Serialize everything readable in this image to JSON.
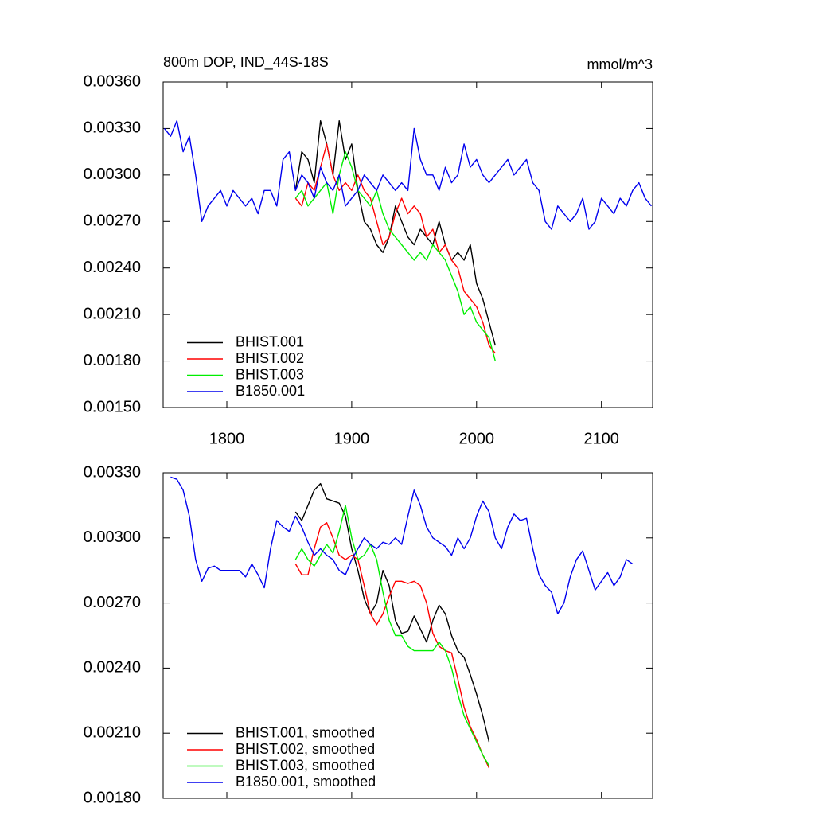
{
  "chart_data": [
    {
      "type": "line",
      "title": "800m DOP, IND_44S-18S",
      "units": "mmol/m^3",
      "xlim": [
        1749,
        2141
      ],
      "xticks": [
        1800,
        1900,
        2000,
        2100
      ],
      "xticklabels": true,
      "ylim": [
        0.0015,
        0.0036
      ],
      "yticks": [
        {
          "value": 0.0015,
          "label": "0.00150"
        },
        {
          "value": 0.0018,
          "label": "0.00180"
        },
        {
          "value": 0.0021,
          "label": "0.00210"
        },
        {
          "value": 0.0024,
          "label": "0.00240"
        },
        {
          "value": 0.0027,
          "label": "0.00270"
        },
        {
          "value": 0.003,
          "label": "0.00300"
        },
        {
          "value": 0.0033,
          "label": "0.00330"
        },
        {
          "value": 0.0036,
          "label": "0.00360"
        }
      ],
      "legend": "lower left",
      "series": [
        {
          "name": "BHIST.001",
          "color": "#000000",
          "x": [
            1855,
            1860,
            1865,
            1870,
            1875,
            1880,
            1885,
            1890,
            1895,
            1900,
            1905,
            1910,
            1915,
            1920,
            1925,
            1930,
            1935,
            1940,
            1945,
            1950,
            1955,
            1960,
            1965,
            1970,
            1975,
            1980,
            1985,
            1990,
            1995,
            2000,
            2005,
            2010,
            2015
          ],
          "values": [
            0.0029,
            0.00315,
            0.0031,
            0.00295,
            0.00335,
            0.0032,
            0.003,
            0.00335,
            0.0031,
            0.0032,
            0.0029,
            0.0027,
            0.00265,
            0.00255,
            0.0025,
            0.0026,
            0.0028,
            0.0027,
            0.0026,
            0.00255,
            0.00265,
            0.0026,
            0.00255,
            0.0027,
            0.00255,
            0.00245,
            0.0025,
            0.00245,
            0.00255,
            0.0023,
            0.0022,
            0.00205,
            0.0019
          ]
        },
        {
          "name": "BHIST.002",
          "color": "#ff0000",
          "x": [
            1855,
            1860,
            1865,
            1870,
            1875,
            1880,
            1885,
            1890,
            1895,
            1900,
            1905,
            1910,
            1915,
            1920,
            1925,
            1930,
            1935,
            1940,
            1945,
            1950,
            1955,
            1960,
            1965,
            1970,
            1975,
            1980,
            1985,
            1990,
            1995,
            2000,
            2005,
            2010,
            2015
          ],
          "values": [
            0.00285,
            0.0028,
            0.00295,
            0.0029,
            0.00305,
            0.0032,
            0.003,
            0.0029,
            0.00295,
            0.0029,
            0.003,
            0.0029,
            0.00285,
            0.0027,
            0.00255,
            0.0026,
            0.00275,
            0.00285,
            0.00275,
            0.0028,
            0.00275,
            0.0026,
            0.00265,
            0.0025,
            0.00255,
            0.00245,
            0.0024,
            0.00225,
            0.0022,
            0.00215,
            0.00205,
            0.0019,
            0.00185
          ]
        },
        {
          "name": "BHIST.003",
          "color": "#00ee00",
          "x": [
            1855,
            1860,
            1865,
            1870,
            1875,
            1880,
            1885,
            1890,
            1895,
            1900,
            1905,
            1910,
            1915,
            1920,
            1925,
            1930,
            1935,
            1940,
            1945,
            1950,
            1955,
            1960,
            1965,
            1970,
            1975,
            1980,
            1985,
            1990,
            1995,
            2000,
            2005,
            2010,
            2015
          ],
          "values": [
            0.00285,
            0.0029,
            0.0028,
            0.00285,
            0.0029,
            0.00295,
            0.00275,
            0.003,
            0.00315,
            0.00305,
            0.0029,
            0.00285,
            0.0028,
            0.0029,
            0.00275,
            0.00265,
            0.0026,
            0.00255,
            0.0025,
            0.00245,
            0.0025,
            0.00245,
            0.00255,
            0.0025,
            0.00245,
            0.00235,
            0.00225,
            0.0021,
            0.00215,
            0.00205,
            0.002,
            0.00195,
            0.0018
          ]
        },
        {
          "name": "B1850.001",
          "color": "#0000ee",
          "x": [
            1750,
            1755,
            1760,
            1765,
            1770,
            1775,
            1780,
            1785,
            1790,
            1795,
            1800,
            1805,
            1810,
            1815,
            1820,
            1825,
            1830,
            1835,
            1840,
            1845,
            1850,
            1855,
            1860,
            1865,
            1870,
            1875,
            1880,
            1885,
            1890,
            1895,
            1900,
            1905,
            1910,
            1915,
            1920,
            1925,
            1930,
            1935,
            1940,
            1945,
            1950,
            1955,
            1960,
            1965,
            1970,
            1975,
            1980,
            1985,
            1990,
            1995,
            2000,
            2005,
            2010,
            2015,
            2020,
            2025,
            2030,
            2035,
            2040,
            2045,
            2050,
            2055,
            2060,
            2065,
            2070,
            2075,
            2080,
            2085,
            2090,
            2095,
            2100,
            2105,
            2110,
            2115,
            2120,
            2125,
            2130,
            2135,
            2140
          ],
          "values": [
            0.0033,
            0.00325,
            0.00335,
            0.00315,
            0.00325,
            0.003,
            0.0027,
            0.0028,
            0.00285,
            0.0029,
            0.0028,
            0.0029,
            0.00285,
            0.0028,
            0.00285,
            0.00275,
            0.0029,
            0.0029,
            0.0028,
            0.0031,
            0.00315,
            0.0029,
            0.003,
            0.00295,
            0.00285,
            0.00305,
            0.00295,
            0.0029,
            0.003,
            0.0028,
            0.00285,
            0.0029,
            0.003,
            0.00295,
            0.0029,
            0.003,
            0.00295,
            0.0029,
            0.00295,
            0.0029,
            0.0033,
            0.0031,
            0.003,
            0.003,
            0.0029,
            0.00305,
            0.00295,
            0.003,
            0.0032,
            0.00305,
            0.0031,
            0.003,
            0.00295,
            0.003,
            0.00305,
            0.0031,
            0.003,
            0.00305,
            0.0031,
            0.00295,
            0.0029,
            0.0027,
            0.00265,
            0.0028,
            0.00275,
            0.0027,
            0.00275,
            0.00285,
            0.00265,
            0.0027,
            0.00285,
            0.0028,
            0.00275,
            0.00285,
            0.0028,
            0.0029,
            0.00295,
            0.00285,
            0.0028
          ]
        }
      ]
    },
    {
      "type": "line",
      "xlim": [
        1749,
        2141
      ],
      "xticks": [
        1800,
        1900,
        2000,
        2100
      ],
      "xticklabels": false,
      "ylim": [
        0.0018,
        0.0033
      ],
      "yticks": [
        {
          "value": 0.0018,
          "label": "0.00180"
        },
        {
          "value": 0.0021,
          "label": "0.00210"
        },
        {
          "value": 0.0024,
          "label": "0.00240"
        },
        {
          "value": 0.0027,
          "label": "0.00270"
        },
        {
          "value": 0.003,
          "label": "0.00300"
        },
        {
          "value": 0.0033,
          "label": "0.00330"
        }
      ],
      "legend": "lower left",
      "series": [
        {
          "name": "BHIST.001, smoothed",
          "color": "#000000",
          "x": [
            1855,
            1860,
            1865,
            1870,
            1875,
            1880,
            1885,
            1890,
            1895,
            1900,
            1905,
            1910,
            1915,
            1920,
            1925,
            1930,
            1935,
            1940,
            1945,
            1950,
            1955,
            1960,
            1965,
            1970,
            1975,
            1980,
            1985,
            1990,
            1995,
            2000,
            2005,
            2010
          ],
          "values": [
            0.00312,
            0.00308,
            0.00315,
            0.00322,
            0.00325,
            0.00318,
            0.00317,
            0.00316,
            0.0031,
            0.00295,
            0.00285,
            0.00272,
            0.00265,
            0.0027,
            0.00285,
            0.00278,
            0.00262,
            0.00256,
            0.00257,
            0.00264,
            0.00258,
            0.00252,
            0.00262,
            0.00269,
            0.00265,
            0.00255,
            0.00248,
            0.00245,
            0.00237,
            0.00228,
            0.00218,
            0.00206
          ]
        },
        {
          "name": "BHIST.002, smoothed",
          "color": "#ff0000",
          "x": [
            1855,
            1860,
            1865,
            1870,
            1875,
            1880,
            1885,
            1890,
            1895,
            1900,
            1905,
            1910,
            1915,
            1920,
            1925,
            1930,
            1935,
            1940,
            1945,
            1950,
            1955,
            1960,
            1965,
            1970,
            1975,
            1980,
            1985,
            1990,
            1995,
            2000,
            2005,
            2010
          ],
          "values": [
            0.00288,
            0.00283,
            0.00283,
            0.00295,
            0.00305,
            0.00307,
            0.003,
            0.00292,
            0.0029,
            0.00292,
            0.0029,
            0.00278,
            0.00265,
            0.0026,
            0.00265,
            0.00273,
            0.0028,
            0.0028,
            0.00279,
            0.0028,
            0.00278,
            0.0027,
            0.00256,
            0.0025,
            0.00248,
            0.00247,
            0.00235,
            0.00222,
            0.00213,
            0.00207,
            0.002,
            0.00194
          ]
        },
        {
          "name": "BHIST.003, smoothed",
          "color": "#00ee00",
          "x": [
            1855,
            1860,
            1865,
            1870,
            1875,
            1880,
            1885,
            1890,
            1895,
            1900,
            1905,
            1910,
            1915,
            1920,
            1925,
            1930,
            1935,
            1940,
            1945,
            1950,
            1955,
            1960,
            1965,
            1970,
            1975,
            1980,
            1985,
            1990,
            1995,
            2000,
            2005,
            2010
          ],
          "values": [
            0.0029,
            0.00295,
            0.0029,
            0.00287,
            0.00292,
            0.00297,
            0.00293,
            0.00303,
            0.00315,
            0.003,
            0.0029,
            0.00292,
            0.00297,
            0.0029,
            0.00275,
            0.00262,
            0.00255,
            0.00255,
            0.0025,
            0.00248,
            0.00248,
            0.00248,
            0.00248,
            0.00252,
            0.00248,
            0.0024,
            0.00228,
            0.00218,
            0.00212,
            0.00206,
            0.002,
            0.00195
          ]
        },
        {
          "name": "B1850.001, smoothed",
          "color": "#0000ee",
          "x": [
            1755,
            1760,
            1765,
            1770,
            1775,
            1780,
            1785,
            1790,
            1795,
            1800,
            1805,
            1810,
            1815,
            1820,
            1825,
            1830,
            1835,
            1840,
            1845,
            1850,
            1855,
            1860,
            1865,
            1870,
            1875,
            1880,
            1885,
            1890,
            1895,
            1900,
            1905,
            1910,
            1915,
            1920,
            1925,
            1930,
            1935,
            1940,
            1945,
            1950,
            1955,
            1960,
            1965,
            1970,
            1975,
            1980,
            1985,
            1990,
            1995,
            2000,
            2005,
            2010,
            2015,
            2020,
            2025,
            2030,
            2035,
            2040,
            2045,
            2050,
            2055,
            2060,
            2065,
            2070,
            2075,
            2080,
            2085,
            2090,
            2095,
            2100,
            2105,
            2110,
            2115,
            2120,
            2125
          ],
          "values": [
            0.00328,
            0.00327,
            0.00322,
            0.0031,
            0.0029,
            0.0028,
            0.00286,
            0.00287,
            0.00285,
            0.00285,
            0.00285,
            0.00285,
            0.00282,
            0.00288,
            0.00283,
            0.00277,
            0.00295,
            0.00308,
            0.00305,
            0.00303,
            0.0031,
            0.00305,
            0.00298,
            0.00292,
            0.00295,
            0.00292,
            0.0029,
            0.00285,
            0.00283,
            0.0029,
            0.00295,
            0.003,
            0.00297,
            0.00295,
            0.00298,
            0.00297,
            0.003,
            0.00297,
            0.0031,
            0.00322,
            0.00315,
            0.00305,
            0.003,
            0.00298,
            0.00296,
            0.00292,
            0.003,
            0.00295,
            0.003,
            0.0031,
            0.00317,
            0.00312,
            0.003,
            0.00295,
            0.00305,
            0.00311,
            0.00308,
            0.00309,
            0.00295,
            0.00283,
            0.00278,
            0.00275,
            0.00265,
            0.0027,
            0.00282,
            0.0029,
            0.00294,
            0.00285,
            0.00276,
            0.0028,
            0.00284,
            0.00278,
            0.00282,
            0.0029,
            0.00288
          ]
        }
      ]
    }
  ]
}
